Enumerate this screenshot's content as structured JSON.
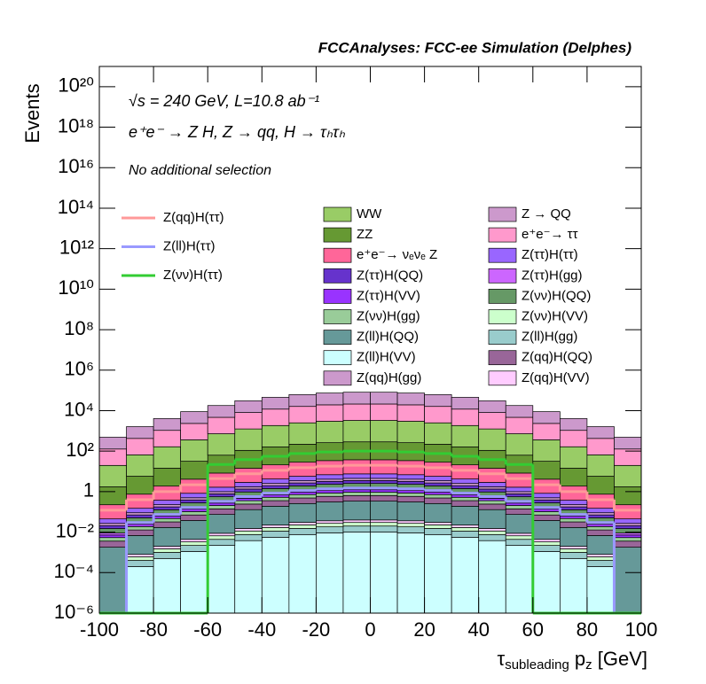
{
  "chart_data": {
    "type": "stacked-histogram",
    "title": "FCCAnalyses: FCC-ee Simulation (Delphes)",
    "annotations": [
      "√s = 240 GeV, L=10.8 ab⁻¹",
      "e⁺e⁻ → Z H, Z → qq, H → τₕτₕ",
      "No additional selection"
    ],
    "ylabel": "Events",
    "xlabel": [
      "τ",
      "subleading",
      " p",
      "z",
      " [GeV]"
    ],
    "log_y": true,
    "bins": [
      -100,
      -90,
      -80,
      -70,
      -60,
      -50,
      -40,
      -30,
      -20,
      -10,
      0,
      10,
      20,
      30,
      40,
      50,
      60,
      70,
      80,
      90,
      100
    ],
    "xlim": [
      -100,
      100
    ],
    "xticks": [
      -100,
      -80,
      -60,
      -40,
      -20,
      0,
      20,
      40,
      60,
      80,
      100
    ],
    "ylim": [
      1e-06,
      1e+21
    ],
    "yticks": [
      {
        "value": 1e-06,
        "label": "10⁻⁶"
      },
      {
        "value": 0.0001,
        "label": "10⁻⁴"
      },
      {
        "value": 0.01,
        "label": "10⁻²"
      },
      1,
      {
        "value": 100,
        "label": "10²"
      },
      {
        "value": 10000.0,
        "label": "10⁴"
      },
      {
        "value": 1000000.0,
        "label": "10⁶"
      },
      {
        "value": 100000000.0,
        "label": "10⁸"
      },
      {
        "value": 10000000000.0,
        "label": "10¹⁰"
      },
      {
        "value": 1000000000000.0,
        "label": "10¹²"
      },
      {
        "value": 100000000000000.0,
        "label": "10¹⁴"
      },
      {
        "value": 1e+16,
        "label": "10¹⁶"
      },
      {
        "value": 1e+18,
        "label": "10¹⁸"
      },
      {
        "value": 1e+20,
        "label": "10²⁰"
      }
    ],
    "series": [
      {
        "name": "Z(ll)H(VV)",
        "color": "#ccffff",
        "values": [
          0,
          0.0002,
          0.0005,
          0.0011,
          0.0022,
          0.0038,
          0.0056,
          0.0076,
          0.0091,
          0.01,
          0.01,
          0.0091,
          0.0076,
          0.0056,
          0.0038,
          0.0022,
          0.0011,
          0.0005,
          0.0002,
          0
        ]
      },
      {
        "name": "Z(ll)H(gg)",
        "color": "#99cccc",
        "values": [
          0,
          0.0002,
          0.0005,
          0.0011,
          0.0022,
          0.0038,
          0.0056,
          0.0076,
          0.0091,
          0.01,
          0.01,
          0.0091,
          0.0076,
          0.0056,
          0.0038,
          0.0022,
          0.0011,
          0.0005,
          0.0002,
          0
        ]
      },
      {
        "name": "Z(νν)H(VV)",
        "color": "#ccffcc",
        "values": [
          0,
          0.0002,
          0.0005,
          0.0011,
          0.0022,
          0.0038,
          0.0056,
          0.0076,
          0.0091,
          0.01,
          0.01,
          0.0091,
          0.0076,
          0.0056,
          0.0038,
          0.0022,
          0.0011,
          0.0005,
          0.0002,
          0
        ]
      },
      {
        "name": "Z(qq)H(VV)",
        "color": "#ffccff",
        "values": [
          0,
          0.0002,
          0.0005,
          0.0011,
          0.0022,
          0.0038,
          0.0056,
          0.0076,
          0.0091,
          0.01,
          0.01,
          0.0091,
          0.0076,
          0.0056,
          0.0038,
          0.0022,
          0.0011,
          0.0005,
          0.0002,
          0
        ]
      },
      {
        "name": "Z(ll)H(QQ)",
        "color": "#669999",
        "values": [
          0.0018,
          0.006,
          0.015,
          0.033,
          0.066,
          0.114,
          0.168,
          0.228,
          0.273,
          0.3,
          0.3,
          0.273,
          0.228,
          0.168,
          0.114,
          0.066,
          0.033,
          0.015,
          0.006,
          0.0018
        ]
      },
      {
        "name": "Z(qq)H(QQ)",
        "color": "#996699",
        "values": [
          0.0018,
          0.006,
          0.015,
          0.033,
          0.066,
          0.114,
          0.168,
          0.228,
          0.273,
          0.3,
          0.3,
          0.273,
          0.228,
          0.168,
          0.114,
          0.066,
          0.033,
          0.015,
          0.006,
          0.0018
        ]
      },
      {
        "name": "Z(νν)H(gg)",
        "color": "#99cc99",
        "values": [
          0.0018,
          0.006,
          0.015,
          0.033,
          0.066,
          0.114,
          0.168,
          0.228,
          0.273,
          0.3,
          0.3,
          0.273,
          0.228,
          0.168,
          0.114,
          0.066,
          0.033,
          0.015,
          0.006,
          0.0018
        ]
      },
      {
        "name": "Z(ττ)H(VV)",
        "color": "#9933ff",
        "values": [
          0.0018,
          0.006,
          0.015,
          0.033,
          0.066,
          0.114,
          0.168,
          0.228,
          0.273,
          0.3,
          0.3,
          0.273,
          0.228,
          0.168,
          0.114,
          0.066,
          0.033,
          0.015,
          0.006,
          0.0018
        ]
      },
      {
        "name": "Z(ττ)H(gg)",
        "color": "#cc66ff",
        "values": [
          0.0018,
          0.006,
          0.015,
          0.033,
          0.066,
          0.114,
          0.168,
          0.228,
          0.273,
          0.3,
          0.3,
          0.273,
          0.228,
          0.168,
          0.114,
          0.066,
          0.033,
          0.015,
          0.006,
          0.0018
        ]
      },
      {
        "name": "Z(νν)H(QQ)",
        "color": "#669966",
        "values": [
          0.006,
          0.02,
          0.05,
          0.11,
          0.22,
          0.38,
          0.56,
          0.76,
          0.91,
          1,
          1,
          0.91,
          0.76,
          0.56,
          0.38,
          0.22,
          0.11,
          0.05,
          0.02,
          0.006
        ]
      },
      {
        "name": "Z(ττ)H(QQ)",
        "color": "#6633cc",
        "values": [
          0.006,
          0.02,
          0.05,
          0.11,
          0.22,
          0.38,
          0.56,
          0.76,
          0.91,
          1,
          1,
          0.91,
          0.76,
          0.56,
          0.38,
          0.22,
          0.11,
          0.05,
          0.02,
          0.006
        ]
      },
      {
        "name": "Z(qq)H(gg)",
        "color": "#cc99cc",
        "values": [
          0.006,
          0.02,
          0.05,
          0.11,
          0.22,
          0.38,
          0.56,
          0.76,
          0.91,
          1,
          1,
          0.91,
          0.76,
          0.56,
          0.38,
          0.22,
          0.11,
          0.05,
          0.02,
          0.006
        ]
      },
      {
        "name": "Z(ττ)H(ττ)",
        "color": "#9966ff",
        "values": [
          0.018,
          0.06,
          0.15,
          0.33,
          0.66,
          1.14,
          1.68,
          2.28,
          2.73,
          3,
          3,
          2.73,
          2.28,
          1.68,
          1.14,
          0.66,
          0.33,
          0.15,
          0.06,
          0.018
        ]
      },
      {
        "name": "e⁺e⁻→ νₑνₑ Z",
        "color": "#ff6699",
        "values": [
          0.18,
          0.6,
          1.5,
          3.3,
          6.6,
          11.4,
          16.8,
          22.8,
          27.3,
          30,
          30,
          27.3,
          22.8,
          16.8,
          11.4,
          6.6,
          3.3,
          1.5,
          0.6,
          0.18
        ]
      },
      {
        "name": "ZZ",
        "color": "#669933",
        "values": [
          1.5,
          5,
          12.5,
          27.5,
          55,
          95,
          140,
          190,
          227.5,
          250,
          250,
          227.5,
          190,
          140,
          95,
          55,
          27.5,
          12.5,
          5,
          1.5
        ]
      },
      {
        "name": "WW",
        "color": "#99cc66",
        "values": [
          18,
          60,
          150,
          330,
          660,
          1140,
          1680,
          2280,
          2730,
          3000,
          3000,
          2730,
          2280,
          1680,
          1140,
          660,
          330,
          150,
          60,
          18
        ]
      },
      {
        "name": "e⁺e⁻→ ττ",
        "color": "#ff99cc",
        "values": [
          108,
          360,
          900,
          1980,
          3960,
          6840,
          10080,
          13680,
          16380,
          18000,
          18000,
          16380,
          13680,
          10080,
          6840,
          3960,
          1980,
          900,
          360,
          108
        ]
      },
      {
        "name": "Z → QQ",
        "color": "#cc99cc",
        "values": [
          360,
          1200,
          3000,
          6600,
          13200,
          22800,
          33600,
          45600,
          54600,
          60000,
          60000,
          54600,
          45600,
          33600,
          22800,
          13200,
          6600,
          3000,
          1200,
          360
        ]
      }
    ],
    "lines": [
      {
        "name": "Z(qq)H(ττ)",
        "color": "#ff9999",
        "values": [
          0.12,
          0.4,
          1,
          2.2,
          4.4,
          7.6,
          11.2,
          15.2,
          18.2,
          20,
          20,
          18.2,
          15.2,
          11.2,
          7.6,
          4.4,
          2.2,
          1,
          0.4,
          0.12
        ]
      },
      {
        "name": "Z(ll)H(ττ)",
        "color": "#9999ff",
        "values": [
          0,
          0.03,
          0.075,
          0.165,
          0.33,
          0.57,
          0.84,
          1.14,
          1.365,
          1.5,
          1.5,
          1.365,
          1.14,
          0.84,
          0.57,
          0.33,
          0.165,
          0.075,
          0.03,
          0
        ]
      },
      {
        "name": "Z(νν)H(ττ)",
        "color": "#33cc33",
        "values": [
          0,
          0,
          0,
          0,
          22,
          38,
          56,
          76,
          91,
          100,
          100,
          91,
          76,
          56,
          38,
          22,
          0,
          0,
          0,
          0
        ]
      }
    ]
  }
}
